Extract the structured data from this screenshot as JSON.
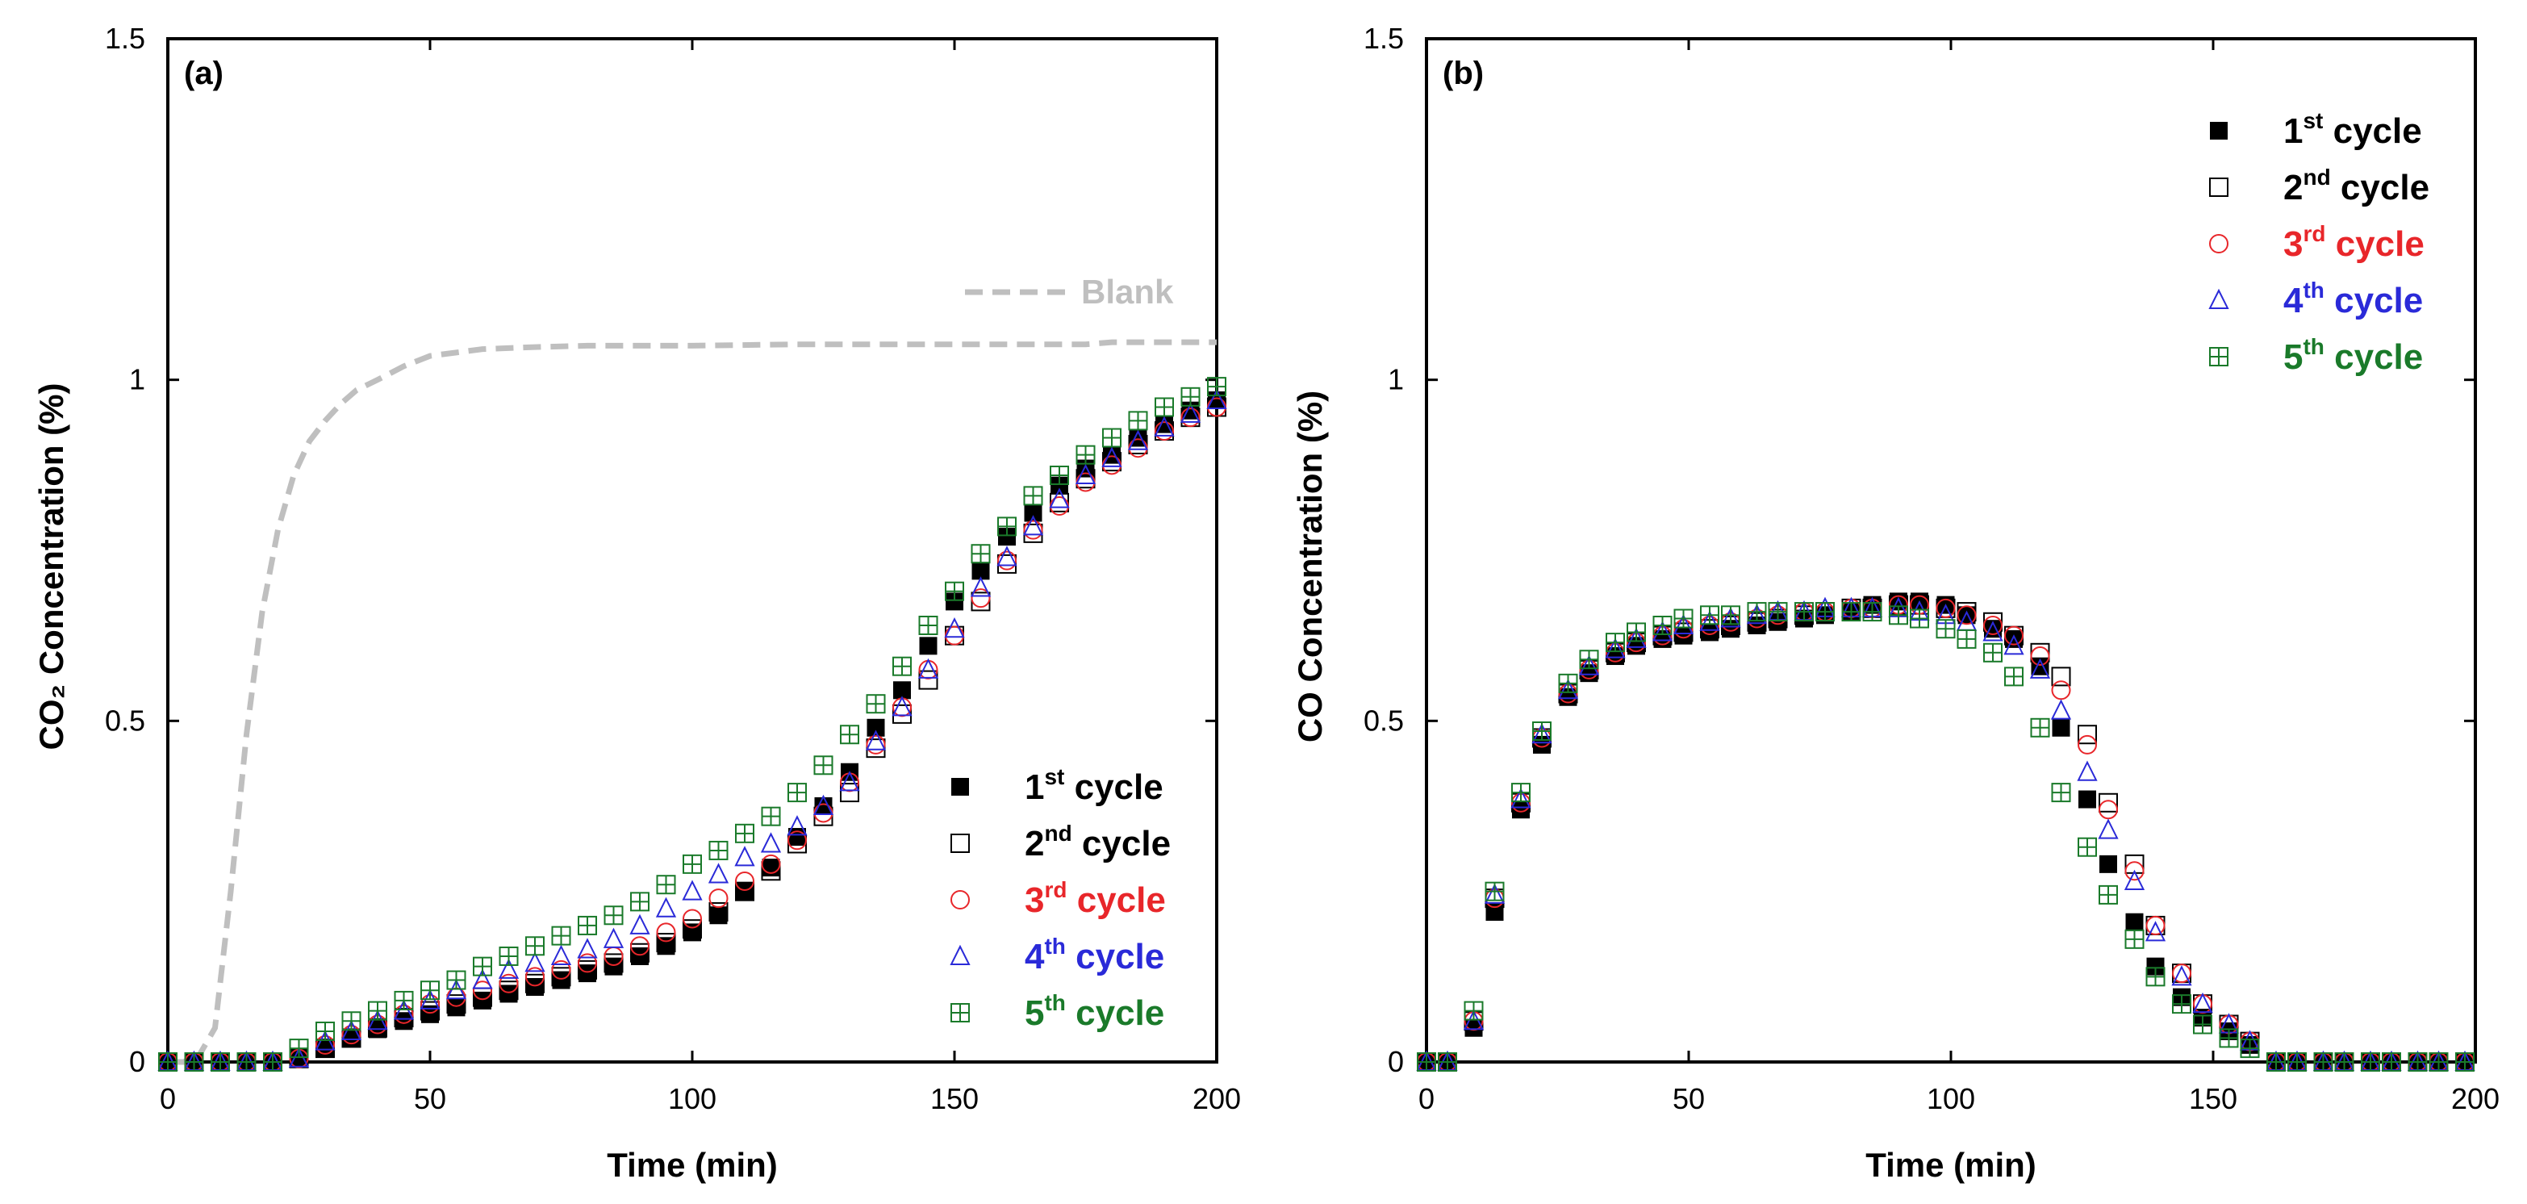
{
  "chart_data": [
    {
      "type": "scatter",
      "panel_label": "(a)",
      "xlabel": "Time (min)",
      "ylabel": "CO₂ Concentration (%)",
      "xlim": [
        0,
        200
      ],
      "ylim": [
        0,
        1.5
      ],
      "xticks": [
        "0",
        "50",
        "100",
        "150",
        "200"
      ],
      "yticks": [
        "0",
        "0.5",
        "1",
        "1.5"
      ],
      "xtick_values": [
        0,
        50,
        100,
        150,
        200
      ],
      "ytick_values": [
        0,
        0.5,
        1,
        1.5
      ],
      "legend_position": "bottom-right",
      "reference_line": {
        "name": "Blank",
        "color": "#bfbfbf",
        "style": "dashed",
        "x": [
          0,
          3,
          6,
          9,
          12,
          15,
          18,
          21,
          24,
          27,
          30,
          33,
          36,
          40,
          45,
          50,
          55,
          60,
          70,
          80,
          100,
          120,
          140,
          160,
          175,
          180,
          190,
          200
        ],
        "y": [
          0,
          0,
          0.01,
          0.05,
          0.25,
          0.48,
          0.66,
          0.78,
          0.86,
          0.91,
          0.94,
          0.965,
          0.985,
          1.0,
          1.02,
          1.035,
          1.04,
          1.045,
          1.048,
          1.05,
          1.05,
          1.052,
          1.052,
          1.052,
          1.052,
          1.055,
          1.055,
          1.055
        ]
      },
      "series": [
        {
          "name": "1st cycle",
          "ordinal": "1",
          "sup": "st",
          "label_rest": " cycle",
          "color": "#000000",
          "marker": "filled-square",
          "x": [
            0,
            5,
            10,
            15,
            20,
            25,
            30,
            35,
            40,
            45,
            50,
            55,
            60,
            65,
            70,
            75,
            80,
            85,
            90,
            95,
            100,
            105,
            110,
            115,
            120,
            125,
            130,
            135,
            140,
            145,
            150,
            155,
            160,
            165,
            170,
            175,
            180,
            185,
            190,
            195,
            200
          ],
          "y": [
            0,
            0,
            0,
            0,
            0,
            0.005,
            0.02,
            0.035,
            0.048,
            0.06,
            0.07,
            0.08,
            0.09,
            0.1,
            0.11,
            0.12,
            0.13,
            0.14,
            0.155,
            0.17,
            0.19,
            0.215,
            0.25,
            0.285,
            0.33,
            0.375,
            0.425,
            0.49,
            0.545,
            0.61,
            0.675,
            0.72,
            0.77,
            0.805,
            0.845,
            0.87,
            0.89,
            0.915,
            0.935,
            0.955,
            0.97
          ]
        },
        {
          "name": "2nd cycle",
          "ordinal": "2",
          "sup": "nd",
          "label_rest": " cycle",
          "color": "#000000",
          "marker": "open-square",
          "x": [
            0,
            5,
            10,
            15,
            20,
            25,
            30,
            35,
            40,
            45,
            50,
            55,
            60,
            65,
            70,
            75,
            80,
            85,
            90,
            95,
            100,
            105,
            110,
            115,
            120,
            125,
            130,
            135,
            140,
            145,
            150,
            155,
            160,
            165,
            170,
            175,
            180,
            185,
            190,
            195,
            200
          ],
          "y": [
            0,
            0,
            0,
            0,
            0,
            0.005,
            0.02,
            0.035,
            0.05,
            0.065,
            0.075,
            0.085,
            0.095,
            0.105,
            0.115,
            0.125,
            0.135,
            0.145,
            0.16,
            0.175,
            0.195,
            0.22,
            0.25,
            0.28,
            0.32,
            0.36,
            0.395,
            0.46,
            0.51,
            0.56,
            0.625,
            0.675,
            0.73,
            0.775,
            0.82,
            0.855,
            0.88,
            0.905,
            0.925,
            0.945,
            0.96
          ]
        },
        {
          "name": "3rd cycle",
          "ordinal": "3",
          "sup": "rd",
          "label_rest": " cycle",
          "color": "#e8262a",
          "marker": "open-circle",
          "x": [
            0,
            5,
            10,
            15,
            20,
            25,
            30,
            35,
            40,
            45,
            50,
            55,
            60,
            65,
            70,
            75,
            80,
            85,
            90,
            95,
            100,
            105,
            110,
            115,
            120,
            125,
            130,
            135,
            140,
            145,
            150,
            155,
            160,
            165,
            170,
            175,
            180,
            185,
            190,
            195,
            200
          ],
          "y": [
            0,
            0,
            0,
            0,
            0,
            0.005,
            0.025,
            0.04,
            0.055,
            0.07,
            0.085,
            0.095,
            0.105,
            0.115,
            0.125,
            0.135,
            0.145,
            0.155,
            0.17,
            0.19,
            0.21,
            0.24,
            0.265,
            0.29,
            0.325,
            0.365,
            0.41,
            0.465,
            0.52,
            0.575,
            0.625,
            0.68,
            0.735,
            0.78,
            0.815,
            0.85,
            0.875,
            0.9,
            0.925,
            0.945,
            0.96
          ]
        },
        {
          "name": "4th cycle",
          "ordinal": "4",
          "sup": "th",
          "label_rest": " cycle",
          "color": "#2a2ad8",
          "marker": "open-triangle",
          "x": [
            0,
            5,
            10,
            15,
            20,
            25,
            30,
            35,
            40,
            45,
            50,
            55,
            60,
            65,
            70,
            75,
            80,
            85,
            90,
            95,
            100,
            105,
            110,
            115,
            120,
            125,
            130,
            135,
            140,
            145,
            150,
            155,
            160,
            165,
            170,
            175,
            180,
            185,
            190,
            195,
            200
          ],
          "y": [
            0,
            0,
            0,
            0,
            0,
            0.005,
            0.03,
            0.045,
            0.06,
            0.075,
            0.09,
            0.105,
            0.12,
            0.135,
            0.145,
            0.155,
            0.165,
            0.18,
            0.2,
            0.225,
            0.25,
            0.275,
            0.3,
            0.32,
            0.345,
            0.375,
            0.41,
            0.47,
            0.52,
            0.575,
            0.635,
            0.695,
            0.74,
            0.785,
            0.825,
            0.86,
            0.885,
            0.91,
            0.93,
            0.95,
            0.97
          ]
        },
        {
          "name": "5th cycle",
          "ordinal": "5",
          "sup": "th",
          "label_rest": " cycle",
          "color": "#1a7a2a",
          "marker": "crossed-square",
          "x": [
            0,
            5,
            10,
            15,
            20,
            25,
            30,
            35,
            40,
            45,
            50,
            55,
            60,
            65,
            70,
            75,
            80,
            85,
            90,
            95,
            100,
            105,
            110,
            115,
            120,
            125,
            130,
            135,
            140,
            145,
            150,
            155,
            160,
            165,
            170,
            175,
            180,
            185,
            190,
            195,
            200
          ],
          "y": [
            0,
            0,
            0,
            0,
            0,
            0.02,
            0.045,
            0.06,
            0.075,
            0.09,
            0.105,
            0.12,
            0.14,
            0.155,
            0.17,
            0.185,
            0.2,
            0.215,
            0.235,
            0.26,
            0.29,
            0.31,
            0.335,
            0.36,
            0.395,
            0.435,
            0.48,
            0.525,
            0.58,
            0.64,
            0.69,
            0.745,
            0.785,
            0.83,
            0.86,
            0.89,
            0.915,
            0.94,
            0.96,
            0.975,
            0.99
          ]
        }
      ]
    },
    {
      "type": "scatter",
      "panel_label": "(b)",
      "xlabel": "Time (min)",
      "ylabel": "CO Concentration (%)",
      "xlim": [
        0,
        200
      ],
      "ylim": [
        0,
        1.5
      ],
      "xticks": [
        "0",
        "50",
        "100",
        "150",
        "200"
      ],
      "yticks": [
        "0",
        "0.5",
        "1",
        "1.5"
      ],
      "xtick_values": [
        0,
        50,
        100,
        150,
        200
      ],
      "ytick_values": [
        0,
        0.5,
        1,
        1.5
      ],
      "legend_position": "top-right",
      "series": [
        {
          "name": "1st cycle",
          "ordinal": "1",
          "sup": "st",
          "label_rest": " cycle",
          "color": "#000000",
          "marker": "filled-square",
          "x": [
            0,
            4,
            9,
            13,
            18,
            22,
            27,
            31,
            36,
            40,
            45,
            49,
            54,
            58,
            63,
            67,
            72,
            76,
            81,
            85,
            90,
            94,
            99,
            103,
            108,
            112,
            117,
            121,
            126,
            130,
            135,
            139,
            144,
            148,
            153,
            157,
            162,
            166,
            171,
            175,
            180,
            184,
            189,
            193,
            198
          ],
          "y": [
            0,
            0,
            0.05,
            0.22,
            0.37,
            0.465,
            0.535,
            0.57,
            0.595,
            0.61,
            0.62,
            0.625,
            0.63,
            0.635,
            0.64,
            0.645,
            0.65,
            0.655,
            0.66,
            0.67,
            0.675,
            0.675,
            0.67,
            0.655,
            0.635,
            0.62,
            0.58,
            0.49,
            0.385,
            0.29,
            0.205,
            0.14,
            0.095,
            0.065,
            0.045,
            0.025,
            0,
            0,
            0,
            0,
            0,
            0,
            0,
            0,
            0
          ]
        },
        {
          "name": "2nd cycle",
          "ordinal": "2",
          "sup": "nd",
          "label_rest": " cycle",
          "color": "#000000",
          "marker": "open-square",
          "x": [
            0,
            4,
            9,
            13,
            18,
            22,
            27,
            31,
            36,
            40,
            45,
            49,
            54,
            58,
            63,
            67,
            72,
            76,
            81,
            85,
            90,
            94,
            99,
            103,
            108,
            112,
            117,
            121,
            126,
            130,
            135,
            139,
            144,
            148,
            153,
            157,
            162,
            166,
            171,
            175,
            180,
            184,
            189,
            193,
            198
          ],
          "y": [
            0,
            0,
            0.06,
            0.24,
            0.38,
            0.475,
            0.54,
            0.575,
            0.6,
            0.615,
            0.625,
            0.63,
            0.635,
            0.64,
            0.645,
            0.65,
            0.655,
            0.66,
            0.665,
            0.665,
            0.67,
            0.67,
            0.665,
            0.66,
            0.645,
            0.625,
            0.6,
            0.565,
            0.48,
            0.38,
            0.29,
            0.2,
            0.13,
            0.085,
            0.055,
            0.03,
            0,
            0,
            0,
            0,
            0,
            0,
            0,
            0,
            0
          ]
        },
        {
          "name": "3rd cycle",
          "ordinal": "3",
          "sup": "rd",
          "label_rest": " cycle",
          "color": "#e8262a",
          "marker": "open-circle",
          "x": [
            0,
            4,
            9,
            13,
            18,
            22,
            27,
            31,
            36,
            40,
            45,
            49,
            54,
            58,
            63,
            67,
            72,
            76,
            81,
            85,
            90,
            94,
            99,
            103,
            108,
            112,
            117,
            121,
            126,
            130,
            135,
            139,
            144,
            148,
            153,
            157,
            162,
            166,
            171,
            175,
            180,
            184,
            189,
            193,
            198
          ],
          "y": [
            0,
            0,
            0.06,
            0.24,
            0.38,
            0.475,
            0.54,
            0.575,
            0.6,
            0.615,
            0.625,
            0.635,
            0.64,
            0.645,
            0.65,
            0.655,
            0.66,
            0.66,
            0.665,
            0.665,
            0.67,
            0.67,
            0.665,
            0.655,
            0.64,
            0.625,
            0.595,
            0.545,
            0.465,
            0.37,
            0.28,
            0.2,
            0.13,
            0.085,
            0.055,
            0.03,
            0,
            0,
            0,
            0,
            0,
            0,
            0,
            0,
            0
          ]
        },
        {
          "name": "4th cycle",
          "ordinal": "4",
          "sup": "th",
          "label_rest": " cycle",
          "color": "#2a2ad8",
          "marker": "open-triangle",
          "x": [
            0,
            4,
            9,
            13,
            18,
            22,
            27,
            31,
            36,
            40,
            45,
            49,
            54,
            58,
            63,
            67,
            72,
            76,
            81,
            85,
            90,
            94,
            99,
            103,
            108,
            112,
            117,
            121,
            126,
            130,
            135,
            139,
            144,
            148,
            153,
            157,
            162,
            166,
            171,
            175,
            180,
            184,
            189,
            193,
            198
          ],
          "y": [
            0,
            0,
            0.06,
            0.245,
            0.385,
            0.48,
            0.545,
            0.58,
            0.605,
            0.62,
            0.63,
            0.64,
            0.645,
            0.65,
            0.655,
            0.66,
            0.66,
            0.665,
            0.665,
            0.665,
            0.665,
            0.66,
            0.655,
            0.645,
            0.63,
            0.61,
            0.575,
            0.515,
            0.425,
            0.34,
            0.265,
            0.19,
            0.125,
            0.085,
            0.055,
            0.03,
            0,
            0,
            0,
            0,
            0,
            0,
            0,
            0,
            0
          ]
        },
        {
          "name": "5th cycle",
          "ordinal": "5",
          "sup": "th",
          "label_rest": " cycle",
          "color": "#1a7a2a",
          "marker": "crossed-square",
          "x": [
            0,
            4,
            9,
            13,
            18,
            22,
            27,
            31,
            36,
            40,
            45,
            49,
            54,
            58,
            63,
            67,
            72,
            76,
            81,
            85,
            90,
            94,
            99,
            103,
            108,
            112,
            117,
            121,
            126,
            130,
            135,
            139,
            144,
            148,
            153,
            157,
            162,
            166,
            171,
            175,
            180,
            184,
            189,
            193,
            198
          ],
          "y": [
            0,
            0,
            0.075,
            0.25,
            0.395,
            0.485,
            0.555,
            0.59,
            0.615,
            0.63,
            0.64,
            0.65,
            0.655,
            0.655,
            0.66,
            0.66,
            0.66,
            0.66,
            0.66,
            0.66,
            0.655,
            0.65,
            0.635,
            0.62,
            0.6,
            0.565,
            0.49,
            0.395,
            0.315,
            0.245,
            0.18,
            0.125,
            0.085,
            0.055,
            0.035,
            0.02,
            0,
            0,
            0,
            0,
            0,
            0,
            0,
            0,
            0
          ]
        }
      ]
    }
  ]
}
